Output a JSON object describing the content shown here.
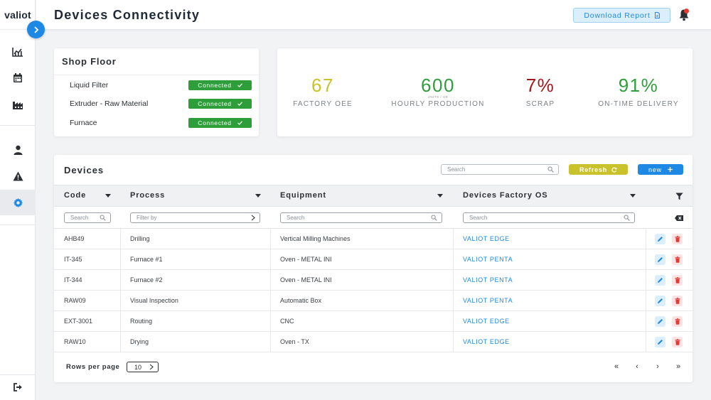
{
  "app": {
    "logo": "valiot"
  },
  "header": {
    "title": "Devices Connectivity",
    "download_label": "Download Report"
  },
  "shop_floor": {
    "title": "Shop Floor",
    "items": [
      {
        "name": "Liquid Filter",
        "status": "Connected"
      },
      {
        "name": "Extruder - Raw Material",
        "status": "Connected"
      },
      {
        "name": "Furnace",
        "status": "Connected"
      }
    ]
  },
  "kpis": [
    {
      "value": "67",
      "unit": "",
      "label": "FACTORY OEE",
      "color": "#c9c22a"
    },
    {
      "value": "600",
      "unit": "UNITS / HR",
      "label": "HOURLY PRODUCTION",
      "color": "#2e9e3a"
    },
    {
      "value": "7%",
      "unit": "",
      "label": "SCRAP",
      "color": "#a4171b"
    },
    {
      "value": "91%",
      "unit": "",
      "label": "ON-TIME DELIVERY",
      "color": "#2e9e3a"
    }
  ],
  "devices": {
    "title": "Devices",
    "search_placeholder": "Search",
    "refresh_label": "Refresh",
    "new_label": "new",
    "columns": [
      "Code",
      "Process",
      "Equipment",
      "Devices Factory OS"
    ],
    "filters": {
      "code": "Search",
      "process": "Filter by",
      "equipment": "Search",
      "os": "Search"
    },
    "rows": [
      {
        "code": "AHB49",
        "process": "Drilling",
        "equipment": "Vertical Milling Machines",
        "os": "VALIOT EDGE"
      },
      {
        "code": "IT-345",
        "process": "Furnace #1",
        "equipment": "Oven - METAL INI",
        "os": "VALIOT PENTA"
      },
      {
        "code": "IT-344",
        "process": "Furnace #2",
        "equipment": "Oven - METAL INI",
        "os": "VALIOT PENTA"
      },
      {
        "code": "RAW09",
        "process": "Visual Inspection",
        "equipment": "Automatic Box",
        "os": "VALIOT PENTA"
      },
      {
        "code": "EXT-3001",
        "process": "Routing",
        "equipment": "CNC",
        "os": "VALIOT EDGE"
      },
      {
        "code": "RAW10",
        "process": "Drying",
        "equipment": "Oven - TX",
        "os": "VALIOT EDGE"
      }
    ],
    "footer": {
      "rows_per_page_label": "Rows per page",
      "rows_per_page_value": "10",
      "pager": [
        "«",
        "‹",
        "›",
        "»"
      ]
    }
  }
}
